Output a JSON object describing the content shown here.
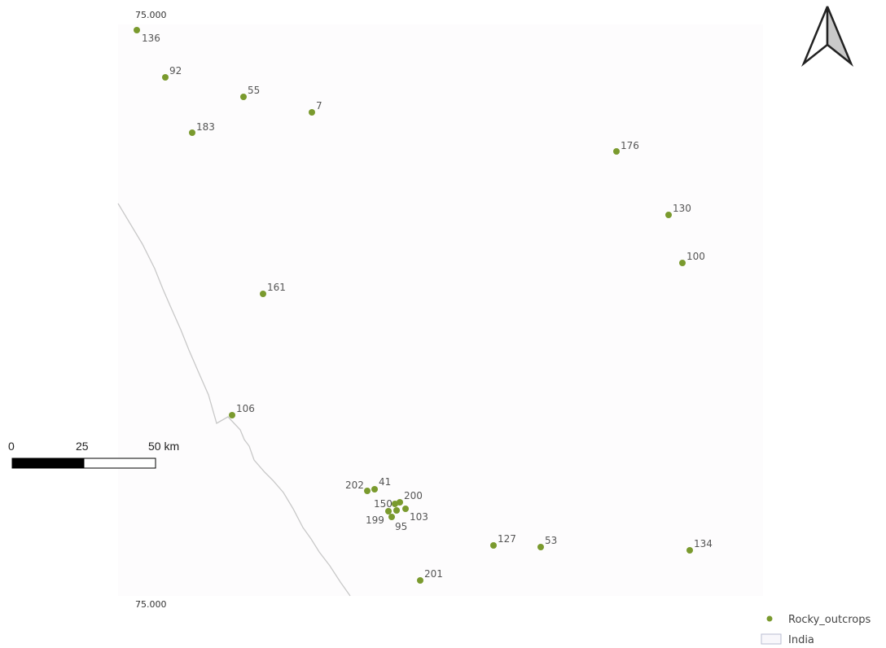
{
  "map": {
    "grid_labels": [
      "75.000",
      "75.000"
    ],
    "north_arrow": "north-arrow-icon",
    "colors": {
      "point": "#7a9a2e",
      "coastline": "#c8c8c8",
      "map_area": "#fdfcfd",
      "scale_fill": "#000000"
    }
  },
  "points": [
    {
      "id": "136"
    },
    {
      "id": "92"
    },
    {
      "id": "55"
    },
    {
      "id": "7"
    },
    {
      "id": "183"
    },
    {
      "id": "176"
    },
    {
      "id": "130"
    },
    {
      "id": "100"
    },
    {
      "id": "161"
    },
    {
      "id": "106"
    },
    {
      "id": "202"
    },
    {
      "id": "41"
    },
    {
      "id": "200"
    },
    {
      "id": "150"
    },
    {
      "id": "199"
    },
    {
      "id": "103"
    },
    {
      "id": "95"
    },
    {
      "id": "127"
    },
    {
      "id": "53"
    },
    {
      "id": "134"
    },
    {
      "id": "201"
    }
  ],
  "scalebar": {
    "ticks": [
      "0",
      "25",
      "50 km"
    ]
  },
  "legend": {
    "items": [
      {
        "label": "Rocky_outcrops",
        "symbol": "point"
      },
      {
        "label": "India",
        "symbol": "polygon"
      }
    ]
  }
}
